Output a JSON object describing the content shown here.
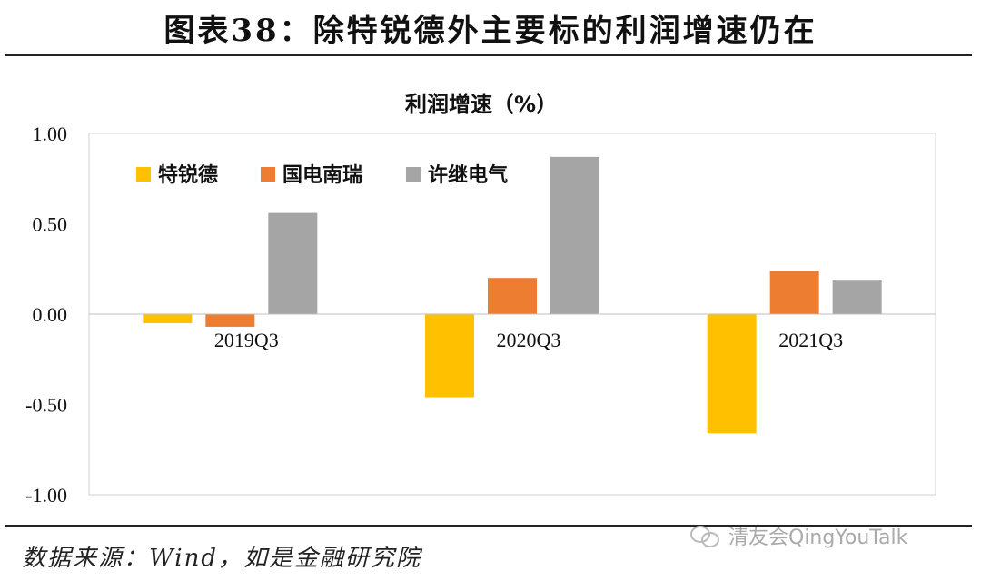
{
  "header": {
    "title": "图表38：除特锐德外主要标的利润增速仍在"
  },
  "footer": {
    "source": "数据来源：Wind，如是金融研究院",
    "watermark": "清友会QingYouTalk"
  },
  "chart_data": {
    "type": "bar",
    "title": "利润增速（%）",
    "categories": [
      "2019Q3",
      "2020Q3",
      "2021Q3"
    ],
    "series": [
      {
        "name": "特锐德",
        "color": "#FFC000",
        "values": [
          -0.05,
          -0.46,
          -0.66
        ]
      },
      {
        "name": "国电南瑞",
        "color": "#ED7D31",
        "values": [
          -0.07,
          0.2,
          0.24
        ]
      },
      {
        "name": "许继电气",
        "color": "#A5A5A5",
        "values": [
          0.56,
          0.87,
          0.19
        ]
      }
    ],
    "ylim": [
      -1.0,
      1.0
    ],
    "yticks": [
      "1.00",
      "0.50",
      "0.00",
      "-0.50",
      "-1.00"
    ],
    "ytick_values": [
      1.0,
      0.5,
      0.0,
      -0.5,
      -1.0
    ],
    "grid": false,
    "legend": "top-left"
  }
}
